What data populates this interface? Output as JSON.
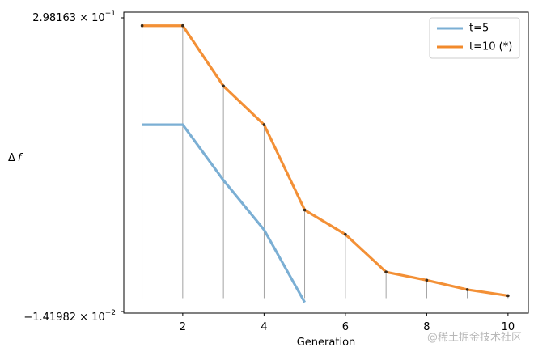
{
  "chart_data": {
    "type": "line",
    "title": "",
    "xlabel": "Generation",
    "ylabel_base": "Δ",
    "ylabel_var": "f",
    "xlim": [
      0.55,
      10.5
    ],
    "ylim": [
      -0.0141982,
      0.298163
    ],
    "x_ticks": [
      2,
      4,
      6,
      8,
      10
    ],
    "y_tick_labels": {
      "top": {
        "mantissa": "2.98163 × 10",
        "exponent": "−1"
      },
      "bottom": {
        "mantissa": "−1.41982 × 10",
        "exponent": "−2"
      }
    },
    "grid": false,
    "legend_position": "top-right",
    "series": [
      {
        "name": "t=5",
        "color": "#7bafd4",
        "x": [
          1,
          2,
          3,
          4,
          5
        ],
        "values": [
          0.1845,
          0.1845,
          0.1255,
          0.0727,
          -0.0044
        ]
      },
      {
        "name": "t=10 (*)",
        "color": "#f28a2b",
        "x": [
          1,
          2,
          3,
          4,
          5,
          6,
          7,
          8,
          9,
          10
        ],
        "values": [
          0.2898,
          0.2898,
          0.2256,
          0.1845,
          0.0938,
          0.0678,
          0.0278,
          0.0191,
          0.0091,
          0.0026
        ]
      }
    ],
    "stem_series": "t=10 (*)",
    "stem_baseline": 0.0
  },
  "watermark": "@稀土掘金技术社区"
}
